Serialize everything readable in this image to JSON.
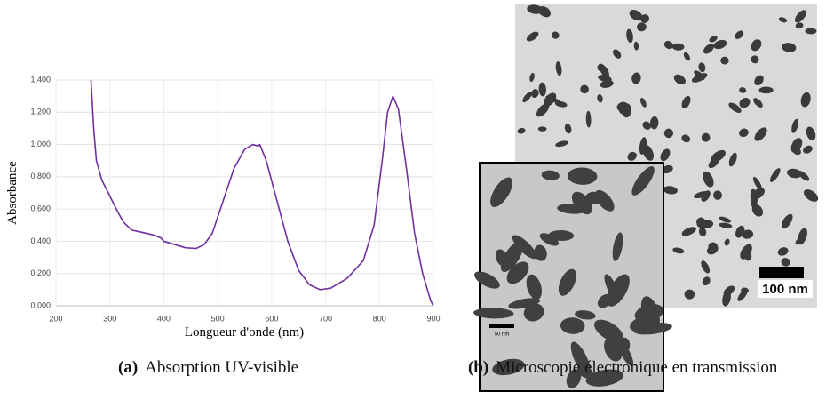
{
  "chart_data": {
    "type": "line",
    "y_label": "Absorbance",
    "x_label": "Longueur d'onde (nm)",
    "x": [
      265,
      270,
      275,
      285,
      300,
      315,
      325,
      340,
      360,
      380,
      395,
      400,
      420,
      440,
      460,
      475,
      490,
      510,
      530,
      550,
      565,
      575,
      578,
      590,
      610,
      630,
      650,
      670,
      690,
      710,
      740,
      770,
      790,
      805,
      815,
      825,
      835,
      850,
      865,
      880,
      895,
      900
    ],
    "series": [
      {
        "name": "Absorbance",
        "color": "#7030a0",
        "values": [
          1.4,
          1.1,
          0.9,
          0.78,
          0.68,
          0.58,
          0.52,
          0.47,
          0.455,
          0.44,
          0.42,
          0.4,
          0.38,
          0.36,
          0.355,
          0.38,
          0.45,
          0.65,
          0.85,
          0.97,
          1.0,
          0.99,
          1.0,
          0.9,
          0.65,
          0.4,
          0.22,
          0.13,
          0.1,
          0.11,
          0.17,
          0.28,
          0.5,
          0.9,
          1.2,
          1.3,
          1.22,
          0.85,
          0.45,
          0.2,
          0.03,
          0.0
        ]
      }
    ],
    "xlim": [
      200,
      900
    ],
    "xticks": [
      200,
      300,
      400,
      500,
      600,
      700,
      800,
      900
    ],
    "ylim": [
      0,
      1.4
    ],
    "yticks": [
      {
        "value": 0,
        "label": "0,000"
      },
      {
        "value": 0.2,
        "label": "0,200"
      },
      {
        "value": 0.4,
        "label": "0,400"
      },
      {
        "value": 0.6,
        "label": "0,600"
      },
      {
        "value": 0.8,
        "label": "0,800"
      },
      {
        "value": 1.0,
        "label": "1,000"
      },
      {
        "value": 1.2,
        "label": "1,200"
      },
      {
        "value": 1.4,
        "label": "1,400"
      }
    ],
    "grid": true
  },
  "image": {
    "scale_bar": "100 nm",
    "inset_scale_bar": "50 nm"
  },
  "captions": [
    {
      "label": "(a)",
      "text": "Absorption UV-visible"
    },
    {
      "label": "(b)",
      "text": "Microscopie électronique en transmission"
    }
  ]
}
